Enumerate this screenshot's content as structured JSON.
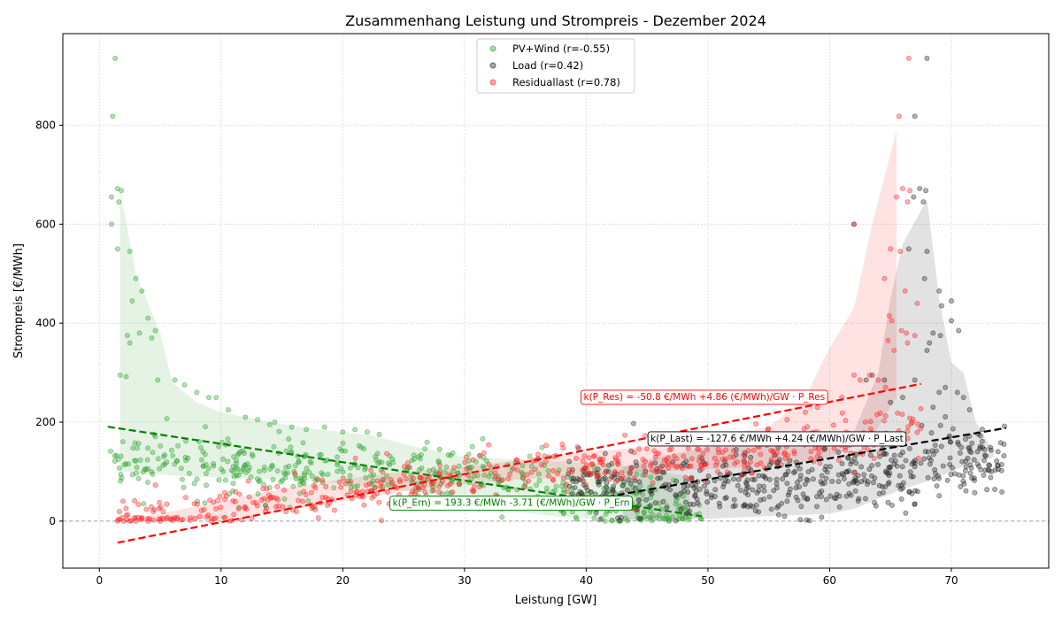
{
  "chart_data": {
    "type": "scatter",
    "title": "Zusammenhang Leistung und Strompreis - Dezember 2024",
    "xlabel": "Leistung [GW]",
    "ylabel": "Strompreis [€/MWh]",
    "xlim": [
      -3,
      78
    ],
    "ylim": [
      -95,
      985
    ],
    "xticks": [
      0,
      10,
      20,
      30,
      40,
      50,
      60,
      70
    ],
    "yticks": [
      0,
      200,
      400,
      600,
      800
    ],
    "grid": true,
    "legend_position": "top-center",
    "zero_line": 0,
    "series": [
      {
        "name": "PV+Wind (r=-0.55)",
        "color": "#2ca02c",
        "fit_color": "#008000",
        "x_range": [
          0.7,
          49.5
        ],
        "anchors": [
          [
            0.7,
            125
          ],
          [
            3,
            120
          ],
          [
            6,
            125
          ],
          [
            10,
            110
          ],
          [
            15,
            105
          ],
          [
            20,
            110
          ],
          [
            25,
            100
          ],
          [
            30,
            90
          ],
          [
            35,
            70
          ],
          [
            40,
            45
          ],
          [
            45,
            30
          ],
          [
            49.5,
            20
          ]
        ],
        "spread": 30,
        "outliers": [
          [
            1.3,
            935
          ],
          [
            1.1,
            818
          ],
          [
            1.5,
            672
          ],
          [
            1.8,
            668
          ],
          [
            1.0,
            655
          ],
          [
            1.6,
            645
          ],
          [
            1.0,
            600
          ],
          [
            1.5,
            550
          ],
          [
            2.5,
            545
          ],
          [
            2.7,
            445
          ],
          [
            3.0,
            490
          ],
          [
            3.5,
            465
          ],
          [
            2.3,
            375
          ],
          [
            2.5,
            360
          ],
          [
            3.3,
            380
          ],
          [
            4.0,
            410
          ],
          [
            4.3,
            370
          ],
          [
            4.6,
            385
          ],
          [
            1.7,
            295
          ],
          [
            2.2,
            292
          ],
          [
            4.8,
            285
          ],
          [
            6.2,
            285
          ],
          [
            7.0,
            275
          ],
          [
            8.0,
            260
          ],
          [
            9.0,
            250
          ],
          [
            9.6,
            250
          ],
          [
            10.6,
            225
          ],
          [
            12.0,
            210
          ],
          [
            13.0,
            205
          ],
          [
            14.0,
            195
          ],
          [
            14.4,
            200
          ],
          [
            15.8,
            190
          ],
          [
            17.0,
            185
          ],
          [
            18.5,
            190
          ],
          [
            20.0,
            180
          ],
          [
            21.0,
            185
          ],
          [
            22.0,
            180
          ],
          [
            23.0,
            175
          ]
        ],
        "fit": {
          "intercept": 193.3,
          "slope": -3.71,
          "x_range": [
            0.7,
            49.5
          ]
        },
        "band": [
          [
            1.7,
            670,
            100
          ],
          [
            3.0,
            500,
            98
          ],
          [
            5.0,
            380,
            95
          ],
          [
            6.0,
            280,
            92
          ],
          [
            8.0,
            240,
            90
          ],
          [
            10.0,
            220,
            88
          ],
          [
            14.0,
            200,
            85
          ],
          [
            18.0,
            185,
            80
          ],
          [
            22.0,
            175,
            70
          ],
          [
            26.0,
            150,
            60
          ],
          [
            30.0,
            130,
            40
          ],
          [
            34.0,
            125,
            20
          ],
          [
            38.0,
            120,
            8
          ],
          [
            42.0,
            115,
            5
          ],
          [
            46.0,
            100,
            3
          ],
          [
            48.5,
            90,
            3
          ]
        ]
      },
      {
        "name": "Load (r=0.42)",
        "color": "#222222",
        "fit_color": "#000000",
        "x_range": [
          38.5,
          74.5
        ],
        "anchors": [
          [
            38.5,
            85
          ],
          [
            42,
            70
          ],
          [
            46,
            65
          ],
          [
            50,
            75
          ],
          [
            55,
            80
          ],
          [
            60,
            80
          ],
          [
            65,
            95
          ],
          [
            70,
            130
          ],
          [
            74.5,
            120
          ]
        ],
        "spread": 35,
        "outliers": [
          [
            68.0,
            935
          ],
          [
            67.0,
            818
          ],
          [
            67.4,
            672
          ],
          [
            67.9,
            668
          ],
          [
            66.9,
            655
          ],
          [
            67.7,
            645
          ],
          [
            62.0,
            600
          ],
          [
            66.5,
            550
          ],
          [
            68.0,
            545
          ],
          [
            69.0,
            465
          ],
          [
            67.8,
            490
          ],
          [
            70.0,
            445
          ],
          [
            69.2,
            435
          ],
          [
            70.0,
            405
          ],
          [
            70.6,
            385
          ],
          [
            68.5,
            380
          ],
          [
            69.1,
            375
          ],
          [
            68.2,
            360
          ],
          [
            68.0,
            345
          ],
          [
            63.5,
            295
          ],
          [
            63.0,
            285
          ],
          [
            64.5,
            285
          ],
          [
            67.0,
            285
          ],
          [
            69.5,
            270
          ],
          [
            70.5,
            260
          ],
          [
            71.0,
            250
          ],
          [
            71.5,
            225
          ],
          [
            69.0,
            260
          ],
          [
            66.0,
            250
          ],
          [
            65.0,
            240
          ],
          [
            68.5,
            230
          ]
        ],
        "fit": {
          "intercept": -127.6,
          "slope": 4.24,
          "x_range": [
            40.0,
            74.5
          ]
        },
        "band": [
          [
            43.0,
            0,
            110
          ],
          [
            46.0,
            0,
            130
          ],
          [
            50.0,
            5,
            150
          ],
          [
            55.0,
            10,
            160
          ],
          [
            60.0,
            15,
            170
          ],
          [
            62.0,
            25,
            180
          ],
          [
            64.0,
            45,
            300
          ],
          [
            65.0,
            55,
            450
          ],
          [
            66.0,
            65,
            560
          ],
          [
            68.0,
            80,
            650
          ],
          [
            69.0,
            90,
            450
          ],
          [
            70.0,
            100,
            320
          ],
          [
            71.0,
            110,
            300
          ],
          [
            72.0,
            120,
            200
          ],
          [
            73.0,
            125,
            160
          ],
          [
            73.5,
            130,
            140
          ]
        ]
      },
      {
        "name": "Residuallast (r=0.78)",
        "color": "#ff2020",
        "fit_color": "#ff0000",
        "x_range": [
          1.5,
          67.5
        ],
        "anchors": [
          [
            1.5,
            0
          ],
          [
            5,
            5
          ],
          [
            10,
            20
          ],
          [
            15,
            45
          ],
          [
            20,
            60
          ],
          [
            25,
            75
          ],
          [
            30,
            90
          ],
          [
            35,
            105
          ],
          [
            40,
            115
          ],
          [
            45,
            120
          ],
          [
            50,
            125
          ],
          [
            55,
            140
          ],
          [
            60,
            160
          ],
          [
            64,
            180
          ],
          [
            67.5,
            200
          ]
        ],
        "spread": 22,
        "outliers": [
          [
            66.5,
            935
          ],
          [
            65.7,
            818
          ],
          [
            66.0,
            672
          ],
          [
            66.6,
            668
          ],
          [
            65.5,
            655
          ],
          [
            66.4,
            645
          ],
          [
            62.0,
            600
          ],
          [
            65.0,
            550
          ],
          [
            65.8,
            545
          ],
          [
            64.5,
            490
          ],
          [
            66.2,
            465
          ],
          [
            67.2,
            440
          ],
          [
            64.9,
            415
          ],
          [
            65.1,
            405
          ],
          [
            65.9,
            385
          ],
          [
            66.3,
            380
          ],
          [
            67.0,
            375
          ],
          [
            64.8,
            365
          ],
          [
            66.4,
            360
          ],
          [
            65.3,
            345
          ],
          [
            62.0,
            295
          ],
          [
            62.5,
            285
          ],
          [
            63.3,
            295
          ],
          [
            64.0,
            285
          ],
          [
            64.6,
            270
          ],
          [
            61.0,
            250
          ],
          [
            59.0,
            230
          ],
          [
            58.0,
            220
          ],
          [
            56.5,
            205
          ],
          [
            1.5,
            0
          ],
          [
            2.0,
            0
          ],
          [
            2.5,
            0
          ],
          [
            3.0,
            0
          ],
          [
            4.0,
            0
          ],
          [
            5.0,
            0
          ],
          [
            6.0,
            5
          ]
        ],
        "fit": {
          "intercept": -50.8,
          "slope": 4.86,
          "x_range": [
            1.5,
            67.5
          ]
        },
        "band": [
          [
            1.5,
            0,
            0
          ],
          [
            5.0,
            0,
            15
          ],
          [
            10.0,
            5,
            40
          ],
          [
            15.0,
            20,
            65
          ],
          [
            20.0,
            40,
            85
          ],
          [
            25.0,
            60,
            100
          ],
          [
            30.0,
            75,
            110
          ],
          [
            35.0,
            85,
            125
          ],
          [
            40.0,
            90,
            140
          ],
          [
            45.0,
            100,
            150
          ],
          [
            50.0,
            105,
            170
          ],
          [
            55.0,
            110,
            190
          ],
          [
            58.0,
            120,
            250
          ],
          [
            60.0,
            130,
            350
          ],
          [
            62.0,
            150,
            430
          ],
          [
            63.5,
            170,
            600
          ],
          [
            65.5,
            250,
            790
          ],
          [
            65.5,
            340,
            420
          ]
        ]
      }
    ],
    "annotations": [
      {
        "text": "k(P_Res) = -50.8 €/MWh +4.86 (€/MWh)/GW · P_Res",
        "color": "#ff0000",
        "x": 39.5,
        "y": 252
      },
      {
        "text": "k(P_Last) = -127.6 €/MWh +4.24 (€/MWh)/GW · P_Last",
        "color": "#000000",
        "x": 45.0,
        "y": 168
      },
      {
        "text": "k(P_Ern) = 193.3 €/MWh -3.71 (€/MWh)/GW · P_Ern",
        "color": "#008000",
        "x": 23.8,
        "y": 38
      }
    ]
  }
}
